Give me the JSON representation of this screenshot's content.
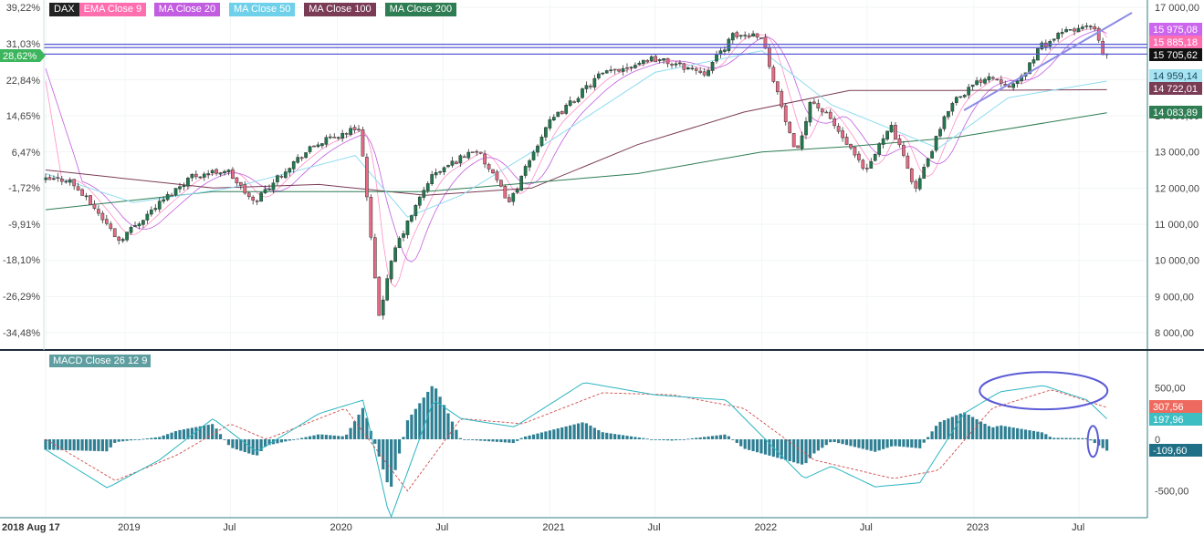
{
  "chart_data": [
    {
      "type": "candlestick",
      "instrument": "DAX",
      "legend": [
        {
          "name": "DAX",
          "color": "#222222"
        },
        {
          "name": "EMA Close 9",
          "color": "#ff6fb0"
        },
        {
          "name": "MA Close 20",
          "color": "#c25ce0"
        },
        {
          "name": "MA Close 50",
          "color": "#6fd0ea"
        },
        {
          "name": "MA Close 100",
          "color": "#7a3b55"
        },
        {
          "name": "MA Close 200",
          "color": "#2e7d53"
        }
      ],
      "x_ticks": [
        "2018 Aug 17",
        "2019",
        "Jul",
        "2020",
        "Jul",
        "2021",
        "Jul",
        "2022",
        "Jul",
        "2023",
        "Jul"
      ],
      "y_right_ticks": [
        "17 000,00",
        "16 000,00",
        "15 000,00",
        "14 000,00",
        "13 000,00",
        "12 000,00",
        "11 000,00",
        "10 000,00",
        "9 000,00",
        "8 000,00"
      ],
      "y_left_ticks": [
        "39,22%",
        "31,03%",
        "22,84%",
        "14,65%",
        "6,47%",
        "-1,72%",
        "-9,91%",
        "-18,10%",
        "-26,29%",
        "-34,48%"
      ],
      "ylim": [
        7700,
        17100
      ],
      "current_pct_label": "28,62%",
      "horizontal_levels": [
        {
          "value": 15975.08,
          "label": "15 975,08",
          "color": "#cc66ee"
        },
        {
          "value": 15885.18,
          "label": "15 885,18",
          "color": "#ff6fb0"
        },
        {
          "value": 15705.62,
          "label": "15 705,62",
          "color": "#111111"
        }
      ],
      "price_labels": [
        {
          "value": 14959.14,
          "label": "14 959,14",
          "color": "#6fd0ea"
        },
        {
          "value": 14722.01,
          "label": "14 722,01",
          "color": "#7a3b55"
        },
        {
          "value": 14083.89,
          "label": "14 083,89",
          "color": "#2e7d53"
        }
      ],
      "close_path": [
        [
          "2018-08-17",
          12210
        ],
        [
          "2018-10-01",
          12250
        ],
        [
          "2018-11-15",
          11450
        ],
        [
          "2018-12-27",
          10560
        ],
        [
          "2019-03-01",
          11500
        ],
        [
          "2019-05-01",
          12340
        ],
        [
          "2019-07-01",
          12500
        ],
        [
          "2019-08-15",
          11600
        ],
        [
          "2019-10-15",
          12600
        ],
        [
          "2019-12-01",
          13200
        ],
        [
          "2020-02-15",
          13700
        ],
        [
          "2020-03-18",
          8440
        ],
        [
          "2020-04-15",
          10300
        ],
        [
          "2020-06-15",
          12300
        ],
        [
          "2020-09-01",
          13100
        ],
        [
          "2020-10-30",
          11600
        ],
        [
          "2020-12-31",
          13700
        ],
        [
          "2021-04-01",
          15100
        ],
        [
          "2021-07-01",
          15600
        ],
        [
          "2021-10-01",
          15200
        ],
        [
          "2021-11-18",
          16200
        ],
        [
          "2022-01-05",
          16270
        ],
        [
          "2022-03-07",
          12830
        ],
        [
          "2022-04-01",
          14450
        ],
        [
          "2022-05-05",
          13900
        ],
        [
          "2022-07-05",
          12400
        ],
        [
          "2022-08-15",
          13800
        ],
        [
          "2022-09-29",
          11980
        ],
        [
          "2022-11-30",
          14400
        ],
        [
          "2023-01-31",
          15130
        ],
        [
          "2023-03-20",
          14800
        ],
        [
          "2023-05-01",
          15900
        ],
        [
          "2023-06-16",
          16350
        ],
        [
          "2023-07-31",
          16470
        ],
        [
          "2023-08-18",
          15650
        ]
      ],
      "ma_lines": [
        {
          "name": "MA Close 100",
          "points": [
            [
              "2018-08-17",
              12500
            ],
            [
              "2019-06-01",
              12000
            ],
            [
              "2019-12-01",
              12100
            ],
            [
              "2020-06-01",
              11800
            ],
            [
              "2020-12-01",
              12000
            ],
            [
              "2021-06-01",
              13200
            ],
            [
              "2021-12-01",
              14100
            ],
            [
              "2022-06-01",
              14700
            ],
            [
              "2022-12-01",
              14700
            ],
            [
              "2023-08-18",
              14722
            ]
          ]
        },
        {
          "name": "MA Close 200",
          "points": [
            [
              "2018-08-17",
              11400
            ],
            [
              "2019-06-01",
              11900
            ],
            [
              "2020-06-01",
              11900
            ],
            [
              "2021-06-01",
              12400
            ],
            [
              "2022-01-01",
              13000
            ],
            [
              "2022-06-01",
              13150
            ],
            [
              "2022-12-01",
              13400
            ],
            [
              "2023-08-18",
              14084
            ]
          ]
        },
        {
          "name": "MA Close 50",
          "points": [
            [
              "2018-08-17",
              12400
            ],
            [
              "2019-01-15",
              11600
            ],
            [
              "2019-07-01",
              12000
            ],
            [
              "2020-02-01",
              12900
            ],
            [
              "2020-05-01",
              11200
            ],
            [
              "2020-08-01",
              11800
            ],
            [
              "2021-01-01",
              13300
            ],
            [
              "2021-07-01",
              15200
            ],
            [
              "2022-01-01",
              15800
            ],
            [
              "2022-05-01",
              14300
            ],
            [
              "2022-11-01",
              13100
            ],
            [
              "2023-03-01",
              14500
            ],
            [
              "2023-08-18",
              14959
            ]
          ]
        }
      ],
      "trendline": {
        "from": [
          "2022-12-15",
          14150
        ],
        "to": [
          "2023-09-30",
          16850
        ]
      }
    },
    {
      "type": "macd",
      "title": "MACD Close 26 12 9",
      "y_ticks": [
        "500,00",
        "0",
        "-500,00"
      ],
      "ylim": [
        -800,
        700
      ],
      "value_labels": [
        {
          "value": 307.56,
          "label": "307,56",
          "color": "#ee6a5e"
        },
        {
          "value": 197.96,
          "label": "197,96",
          "color": "#3dbec3"
        },
        {
          "value": -109.6,
          "label": "-109,60",
          "color": "#1f6f86"
        }
      ],
      "macd_path": [
        [
          "2018-08-17",
          -100
        ],
        [
          "2018-12-01",
          -470
        ],
        [
          "2019-03-01",
          -200
        ],
        [
          "2019-06-01",
          200
        ],
        [
          "2019-08-15",
          -120
        ],
        [
          "2019-12-01",
          250
        ],
        [
          "2020-02-15",
          380
        ],
        [
          "2020-04-01",
          -780
        ],
        [
          "2020-06-15",
          380
        ],
        [
          "2020-08-01",
          200
        ],
        [
          "2020-11-01",
          120
        ],
        [
          "2021-03-01",
          550
        ],
        [
          "2021-07-01",
          430
        ],
        [
          "2021-11-01",
          380
        ],
        [
          "2022-03-15",
          -380
        ],
        [
          "2022-05-01",
          -260
        ],
        [
          "2022-07-15",
          -460
        ],
        [
          "2022-09-30",
          -420
        ],
        [
          "2022-12-15",
          250
        ],
        [
          "2023-02-15",
          460
        ],
        [
          "2023-05-01",
          520
        ],
        [
          "2023-07-15",
          380
        ],
        [
          "2023-08-18",
          198
        ]
      ],
      "signal_path": [
        [
          "2018-08-17",
          0
        ],
        [
          "2018-12-15",
          -400
        ],
        [
          "2019-04-01",
          -150
        ],
        [
          "2019-07-01",
          150
        ],
        [
          "2019-09-01",
          0
        ],
        [
          "2020-01-15",
          300
        ],
        [
          "2020-05-01",
          -500
        ],
        [
          "2020-08-01",
          200
        ],
        [
          "2020-11-15",
          150
        ],
        [
          "2021-04-01",
          450
        ],
        [
          "2021-08-01",
          430
        ],
        [
          "2021-12-01",
          300
        ],
        [
          "2022-04-01",
          -200
        ],
        [
          "2022-08-15",
          -380
        ],
        [
          "2022-11-01",
          -300
        ],
        [
          "2023-02-01",
          300
        ],
        [
          "2023-05-15",
          480
        ],
        [
          "2023-08-18",
          308
        ]
      ],
      "ellipses": [
        {
          "center": [
            "2023-05-01",
            470
          ],
          "rx_days": 110,
          "ry_value": 180
        },
        {
          "center": [
            "2023-07-25",
            -20
          ],
          "rx_days": 9,
          "ry_value": 150
        }
      ]
    }
  ]
}
